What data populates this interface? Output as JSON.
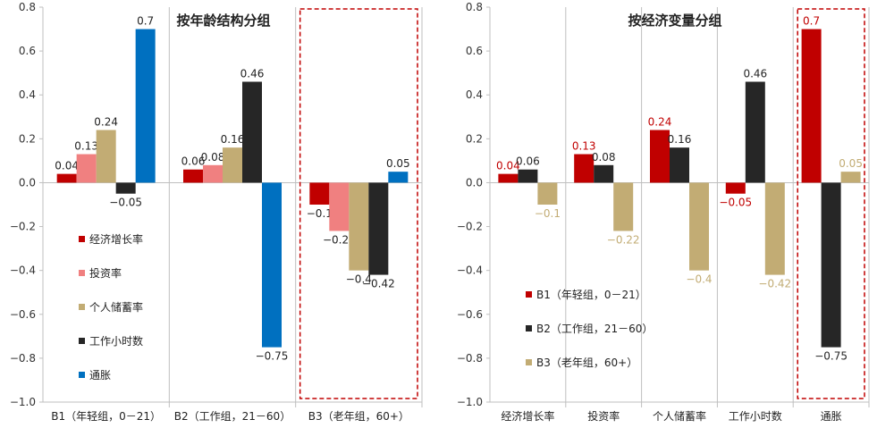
{
  "chart_data": [
    {
      "type": "bar",
      "title": "按年龄结构分组",
      "categories": [
        "B1（年轻组，0－21）",
        "B2（工作组，21－60）",
        "B3（老年组，60+）"
      ],
      "ylim": [
        -1.0,
        0.8
      ],
      "yticks": [
        "0.8",
        "0.6",
        "0.4",
        "0.2",
        "0.0",
        "−0.2",
        "−0.4",
        "−0.6",
        "−0.8",
        "−1.0"
      ],
      "series": [
        {
          "name": "经济增长率",
          "color": "#c00000",
          "values": [
            0.04,
            0.06,
            -0.1
          ],
          "labels": [
            "0.04",
            "0.06",
            "−0.1"
          ]
        },
        {
          "name": "投资率",
          "color": "#f08080",
          "values": [
            0.13,
            0.08,
            -0.22
          ],
          "labels": [
            "0.13",
            "0.08",
            "−0.22"
          ]
        },
        {
          "name": "个人储蓄率",
          "color": "#c2ac74",
          "values": [
            0.24,
            0.16,
            -0.4
          ],
          "labels": [
            "0.24",
            "0.16",
            "−0.4"
          ]
        },
        {
          "name": "工作小时数",
          "color": "#262626",
          "values": [
            -0.05,
            0.46,
            -0.42
          ],
          "labels": [
            "−0.05",
            "0.46",
            "−0.42"
          ]
        },
        {
          "name": "通胀",
          "color": "#0070c0",
          "values": [
            0.7,
            -0.75,
            0.05
          ],
          "labels": [
            "0.7",
            "−0.75",
            "0.05"
          ]
        }
      ],
      "highlight": "B3（老年组，60+）",
      "legend": "left-inside"
    },
    {
      "type": "bar",
      "title": "按经济变量分组",
      "categories": [
        "经济增长率",
        "投资率",
        "个人储蓄率",
        "工作小时数",
        "通胀"
      ],
      "ylim": [
        -1.0,
        0.8
      ],
      "yticks": [
        "0.8",
        "0.6",
        "0.4",
        "0.2",
        "0.0",
        "−0.2",
        "−0.4",
        "−0.6",
        "−0.8",
        "−1.0"
      ],
      "series": [
        {
          "name": "B1（年轻组，0－21）",
          "color": "#c00000",
          "values": [
            0.04,
            0.13,
            0.24,
            -0.05,
            0.7
          ],
          "labels": [
            "0.04",
            "0.13",
            "0.24",
            "−0.05",
            "0.7"
          ]
        },
        {
          "name": "B2（工作组，21－60）",
          "color": "#262626",
          "values": [
            0.06,
            0.08,
            0.16,
            0.46,
            -0.75
          ],
          "labels": [
            "0.06",
            "0.08",
            "0.16",
            "0.46",
            "−0.75"
          ]
        },
        {
          "name": "B3（老年组，60+）",
          "color": "#c2ac74",
          "values": [
            -0.1,
            -0.22,
            -0.4,
            -0.42,
            0.05
          ],
          "labels": [
            "−0.1",
            "−0.22",
            "−0.4",
            "−0.42",
            "0.05"
          ]
        }
      ],
      "highlight": "通胀",
      "legend": "left-inside"
    }
  ]
}
